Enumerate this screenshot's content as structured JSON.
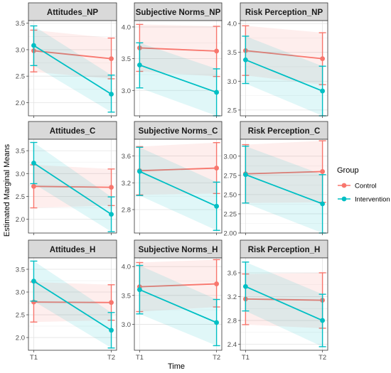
{
  "chart_data": {
    "type": "line",
    "layout": "facet-grid-3x3",
    "xlabel": "Time",
    "ylabel": "Estimated Marginal Means",
    "x": [
      "T1",
      "T2"
    ],
    "legend": {
      "title": "Group",
      "position": "right",
      "entries": [
        {
          "name": "Control",
          "color": "#F8766D"
        },
        {
          "name": "Intervention",
          "color": "#00BFC4"
        }
      ]
    },
    "grid": true,
    "panels": [
      {
        "title": "Attitudes_NP",
        "ylim": [
          1.75,
          3.55
        ],
        "yticks": [
          2.0,
          2.5,
          3.0,
          3.5
        ],
        "tick_labels": [
          "2.0",
          "2.5",
          "3.0",
          "3.5"
        ],
        "series": [
          {
            "name": "Control",
            "values": [
              2.98,
              2.83
            ],
            "ci_low": [
              2.58,
              2.45
            ],
            "ci_high": [
              3.37,
              3.22
            ]
          },
          {
            "name": "Intervention",
            "values": [
              3.08,
              2.16
            ],
            "ci_low": [
              2.7,
              1.82
            ],
            "ci_high": [
              3.45,
              2.52
            ]
          }
        ]
      },
      {
        "title": "Subjective Norms_NP",
        "ylim": [
          2.6,
          4.1
        ],
        "yticks": [
          3.0,
          3.5,
          4.0
        ],
        "tick_labels": [
          "3.0",
          "3.5",
          "4.0"
        ],
        "series": [
          {
            "name": "Control",
            "values": [
              3.67,
              3.62
            ],
            "ci_low": [
              3.3,
              3.22
            ],
            "ci_high": [
              4.04,
              4.01
            ]
          },
          {
            "name": "Intervention",
            "values": [
              3.4,
              2.97
            ],
            "ci_low": [
              3.04,
              2.6
            ],
            "ci_high": [
              3.75,
              3.34
            ]
          }
        ]
      },
      {
        "title": "Risk Perception_NP",
        "ylim": [
          2.4,
          4.05
        ],
        "yticks": [
          2.5,
          3.0,
          3.5,
          4.0
        ],
        "tick_labels": [
          "2.5",
          "3.0",
          "3.5",
          "4.0"
        ],
        "series": [
          {
            "name": "Control",
            "values": [
              3.53,
              3.39
            ],
            "ci_low": [
              3.1,
              2.94
            ],
            "ci_high": [
              3.96,
              3.84
            ]
          },
          {
            "name": "Intervention",
            "values": [
              3.37,
              2.83
            ],
            "ci_low": [
              2.96,
              2.4
            ],
            "ci_high": [
              3.78,
              3.26
            ]
          }
        ]
      },
      {
        "title": "Attitudes_C",
        "ylim": [
          1.7,
          3.75
        ],
        "yticks": [
          2.0,
          2.5,
          3.0,
          3.5
        ],
        "tick_labels": [
          "2.0",
          "2.5",
          "3.0",
          "3.5"
        ],
        "series": [
          {
            "name": "Control",
            "values": [
              2.72,
              2.7
            ],
            "ci_low": [
              2.25,
              2.3
            ],
            "ci_high": [
              3.19,
              3.1
            ]
          },
          {
            "name": "Intervention",
            "values": [
              3.23,
              2.11
            ],
            "ci_low": [
              2.78,
              1.73
            ],
            "ci_high": [
              3.68,
              2.49
            ]
          }
        ]
      },
      {
        "title": "Subjective Norms_C",
        "ylim": [
          2.45,
          3.85
        ],
        "yticks": [
          2.8,
          3.2,
          3.6
        ],
        "tick_labels": [
          "2.8",
          "3.2",
          "3.6"
        ],
        "series": [
          {
            "name": "Control",
            "values": [
              3.38,
              3.42
            ],
            "ci_low": [
              3.02,
              3.04
            ],
            "ci_high": [
              3.74,
              3.8
            ]
          },
          {
            "name": "Intervention",
            "values": [
              3.37,
              2.85
            ],
            "ci_low": [
              3.01,
              2.49
            ],
            "ci_high": [
              3.73,
              3.21
            ]
          }
        ]
      },
      {
        "title": "Risk Perception_C",
        "ylim": [
          2.0,
          3.22
        ],
        "yticks": [
          2.0,
          2.25,
          2.5,
          2.75,
          3.0
        ],
        "tick_labels": [
          "2.00",
          "2.25",
          "2.50",
          "2.75",
          "3.00"
        ],
        "series": [
          {
            "name": "Control",
            "values": [
              2.77,
              2.8
            ],
            "ci_low": [
              2.39,
              2.4
            ],
            "ci_high": [
              3.15,
              3.2
            ]
          },
          {
            "name": "Intervention",
            "values": [
              2.76,
              2.38
            ],
            "ci_low": [
              2.39,
              2.0
            ],
            "ci_high": [
              3.13,
              2.76
            ]
          }
        ]
      },
      {
        "title": "Attitudes_H",
        "ylim": [
          1.72,
          3.75
        ],
        "yticks": [
          2.0,
          2.5,
          3.0,
          3.5
        ],
        "tick_labels": [
          "2.0",
          "2.5",
          "3.0",
          "3.5"
        ],
        "series": [
          {
            "name": "Control",
            "values": [
              2.78,
              2.77
            ],
            "ci_low": [
              2.34,
              2.38
            ],
            "ci_high": [
              3.22,
              3.16
            ]
          },
          {
            "name": "Intervention",
            "values": [
              3.24,
              2.16
            ],
            "ci_low": [
              2.8,
              1.77
            ],
            "ci_high": [
              3.68,
              2.55
            ]
          }
        ]
      },
      {
        "title": "Subjective Norms_H",
        "ylim": [
          2.55,
          4.15
        ],
        "yticks": [
          3.0,
          3.5,
          4.0
        ],
        "tick_labels": [
          "3.0",
          "3.5",
          "4.0"
        ],
        "series": [
          {
            "name": "Control",
            "values": [
              3.65,
              3.7
            ],
            "ci_low": [
              3.22,
              3.3
            ],
            "ci_high": [
              4.07,
              4.12
            ]
          },
          {
            "name": "Intervention",
            "values": [
              3.6,
              3.03
            ],
            "ci_low": [
              3.18,
              2.63
            ],
            "ci_high": [
              4.02,
              3.43
            ]
          }
        ]
      },
      {
        "title": "Risk Perception_H",
        "ylim": [
          2.3,
          3.85
        ],
        "yticks": [
          2.4,
          2.8,
          3.2,
          3.6
        ],
        "tick_labels": [
          "2.4",
          "2.8",
          "3.2",
          "3.6"
        ],
        "series": [
          {
            "name": "Control",
            "values": [
              3.16,
              3.14
            ],
            "ci_low": [
              2.73,
              2.67
            ],
            "ci_high": [
              3.58,
              3.6
            ]
          },
          {
            "name": "Intervention",
            "values": [
              3.37,
              2.8
            ],
            "ci_low": [
              2.96,
              2.36
            ],
            "ci_high": [
              3.78,
              3.24
            ]
          }
        ]
      }
    ]
  }
}
